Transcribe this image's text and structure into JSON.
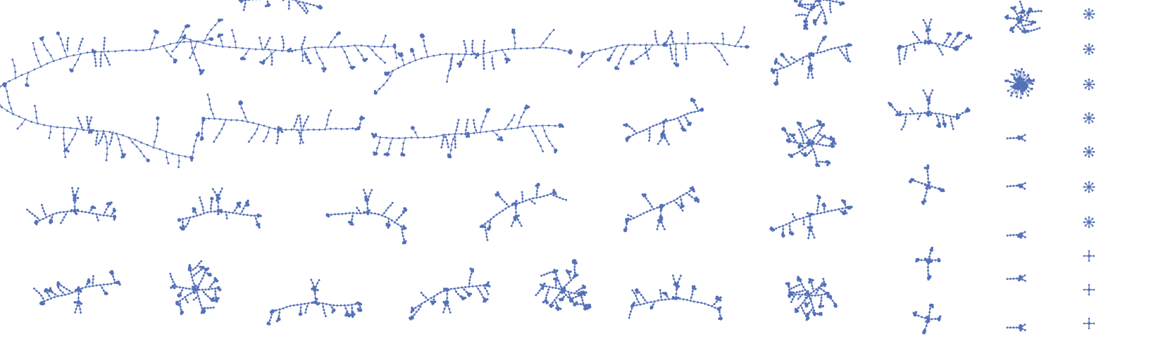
{
  "theme": {
    "background": "#ffffff",
    "node_color": "#5470b8",
    "edge_color": "#5470b8"
  },
  "figure": {
    "description_kind": "grid of node-link tree graph drawings",
    "graph_style": "tree",
    "column_graph_counts": [
      6,
      5,
      5,
      5,
      5,
      5,
      5,
      9,
      10
    ]
  }
}
